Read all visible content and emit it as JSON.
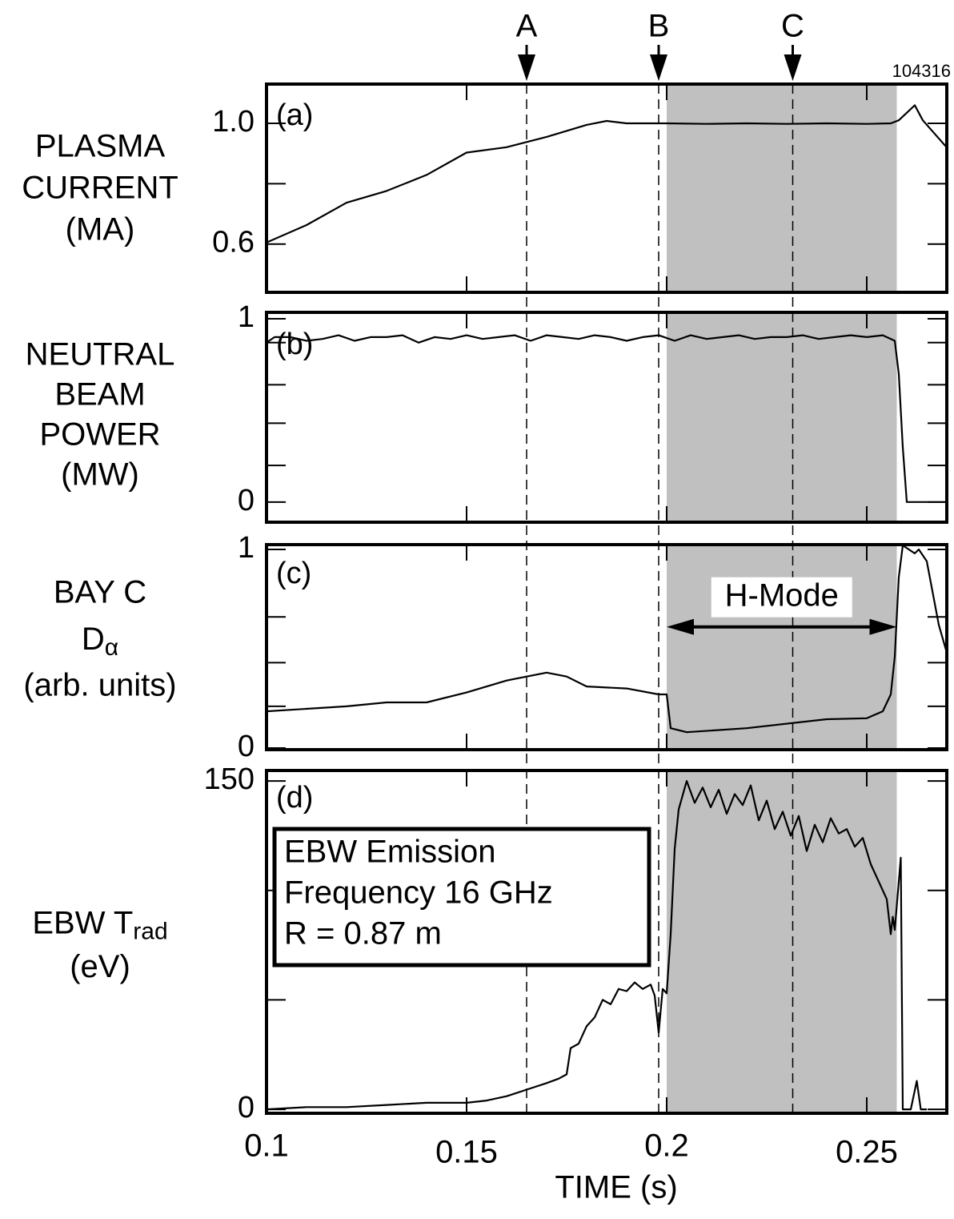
{
  "chart_data": [
    {
      "type": "line",
      "label": "(a)",
      "ylabel": [
        "PLASMA",
        "CURRENT",
        "(MA)"
      ],
      "annotation": "104316",
      "xlim": [
        0.1,
        0.27
      ],
      "ylim": [
        0.44,
        1.13
      ],
      "yticks": [
        {
          "value": 1,
          "label": "1.0"
        },
        0.6
      ],
      "minor_yticks": [
        0.8
      ],
      "color": "#000000",
      "markers": [
        {
          "label": "A",
          "x": 0.165
        },
        {
          "label": "B",
          "x": 0.198
        },
        {
          "label": "C",
          "x": 0.2315
        }
      ],
      "shaded": [
        0.2,
        0.2575
      ],
      "shade_color": "#c0c0c0",
      "x": [
        0.1,
        0.11,
        0.12,
        0.13,
        0.14,
        0.15,
        0.16,
        0.17,
        0.18,
        0.185,
        0.19,
        0.2,
        0.21,
        0.22,
        0.23,
        0.24,
        0.25,
        0.256,
        0.258,
        0.262,
        0.264,
        0.27
      ],
      "values": [
        0.605,
        0.663,
        0.737,
        0.776,
        0.829,
        0.903,
        0.921,
        0.955,
        0.995,
        1.008,
        1.0,
        1.0,
        0.998,
        1.0,
        0.998,
        1.0,
        0.998,
        1.0,
        1.01,
        1.06,
        1.01,
        0.92
      ]
    },
    {
      "type": "line",
      "label": "(b)",
      "ylabel": [
        "NEUTRAL",
        "BEAM",
        "POWER",
        "(MW)"
      ],
      "xlim": [
        0.1,
        0.27
      ],
      "ylim": [
        -0.11,
        1.035
      ],
      "yticks": [
        1,
        0
      ],
      "minor_yticks": [
        0.2,
        0.43,
        0.64,
        0.87
      ],
      "color": "#000000",
      "x": [
        0.1,
        0.102,
        0.106,
        0.11,
        0.114,
        0.118,
        0.122,
        0.126,
        0.13,
        0.134,
        0.138,
        0.142,
        0.146,
        0.15,
        0.154,
        0.158,
        0.162,
        0.166,
        0.17,
        0.174,
        0.178,
        0.182,
        0.186,
        0.19,
        0.194,
        0.198,
        0.202,
        0.206,
        0.21,
        0.214,
        0.218,
        0.222,
        0.226,
        0.23,
        0.234,
        0.238,
        0.242,
        0.246,
        0.25,
        0.254,
        0.257,
        0.258,
        0.259,
        0.26,
        0.261,
        0.265,
        0.27
      ],
      "values": [
        0.87,
        0.9,
        0.9,
        0.88,
        0.89,
        0.91,
        0.88,
        0.9,
        0.9,
        0.91,
        0.87,
        0.9,
        0.89,
        0.91,
        0.89,
        0.9,
        0.91,
        0.88,
        0.91,
        0.9,
        0.89,
        0.91,
        0.9,
        0.88,
        0.9,
        0.91,
        0.88,
        0.91,
        0.89,
        0.9,
        0.91,
        0.89,
        0.9,
        0.9,
        0.91,
        0.89,
        0.9,
        0.91,
        0.9,
        0.91,
        0.88,
        0.7,
        0.3,
        0,
        0,
        0,
        0
      ]
    },
    {
      "type": "line",
      "label": "(c)",
      "ylabel": [
        "BAY C",
        [
          "D",
          "α"
        ],
        "(arb. units)"
      ],
      "xlim": [
        0.1,
        0.27
      ],
      "ylim": [
        -0.008,
        1.024
      ],
      "yticks": [
        1,
        0
      ],
      "minor_yticks": [
        0.21,
        0.43,
        0.66
      ],
      "color": "#000000",
      "span_label": {
        "text": "H-Mode",
        "x": [
          0.2,
          0.2575
        ],
        "y": 0.61
      },
      "x": [
        0.1,
        0.12,
        0.13,
        0.14,
        0.15,
        0.16,
        0.17,
        0.175,
        0.18,
        0.19,
        0.198,
        0.2,
        0.201,
        0.205,
        0.22,
        0.24,
        0.25,
        0.254,
        0.256,
        0.257,
        0.258,
        0.259,
        0.262,
        0.263,
        0.265,
        0.268,
        0.27
      ],
      "values": [
        0.185,
        0.21,
        0.23,
        0.23,
        0.28,
        0.34,
        0.38,
        0.36,
        0.31,
        0.3,
        0.27,
        0.27,
        0.1,
        0.08,
        0.1,
        0.145,
        0.15,
        0.185,
        0.27,
        0.46,
        0.86,
        1.02,
        0.98,
        1.0,
        0.94,
        0.62,
        0.48
      ]
    },
    {
      "type": "line",
      "label": "(d)",
      "ylabel": [
        [
          "EBW T",
          "rad"
        ],
        "(eV)"
      ],
      "box": [
        "EBW Emission",
        "Frequency 16 GHz",
        "R = 0.87 m"
      ],
      "xlabel": "TIME (s)",
      "xlim": [
        0.1,
        0.27
      ],
      "xticks": [
        0.1,
        0.15,
        0.2,
        0.25
      ],
      "ylim": [
        -1.8,
        154.8
      ],
      "yticks": [
        150,
        0
      ],
      "minor_yticks": [
        50,
        100
      ],
      "color": "#000000",
      "x": [
        0.1,
        0.11,
        0.12,
        0.13,
        0.14,
        0.15,
        0.155,
        0.16,
        0.165,
        0.17,
        0.173,
        0.175,
        0.176,
        0.178,
        0.18,
        0.182,
        0.184,
        0.186,
        0.188,
        0.19,
        0.192,
        0.194,
        0.196,
        0.197,
        0.198,
        0.199,
        0.2,
        0.201,
        0.202,
        0.203,
        0.205,
        0.207,
        0.209,
        0.211,
        0.213,
        0.215,
        0.217,
        0.219,
        0.221,
        0.223,
        0.225,
        0.227,
        0.229,
        0.231,
        0.233,
        0.235,
        0.237,
        0.239,
        0.241,
        0.243,
        0.245,
        0.247,
        0.249,
        0.251,
        0.253,
        0.255,
        0.256,
        0.2565,
        0.257,
        0.2585,
        0.259,
        0.261,
        0.2625,
        0.2635,
        0.265
      ],
      "values": [
        0,
        1,
        1,
        2,
        3,
        3,
        4,
        6,
        9,
        12,
        14,
        16,
        28,
        30,
        38,
        42,
        50,
        48,
        55,
        54,
        58,
        55,
        57,
        52,
        35,
        55,
        53,
        80,
        119,
        137,
        150,
        140,
        147,
        138,
        146,
        135,
        144,
        139,
        148,
        132,
        141,
        128,
        136,
        125,
        134,
        118,
        130,
        122,
        133,
        126,
        128,
        120,
        124,
        112,
        104,
        96,
        80,
        88,
        82,
        115,
        0,
        0,
        13,
        0,
        0
      ]
    }
  ]
}
